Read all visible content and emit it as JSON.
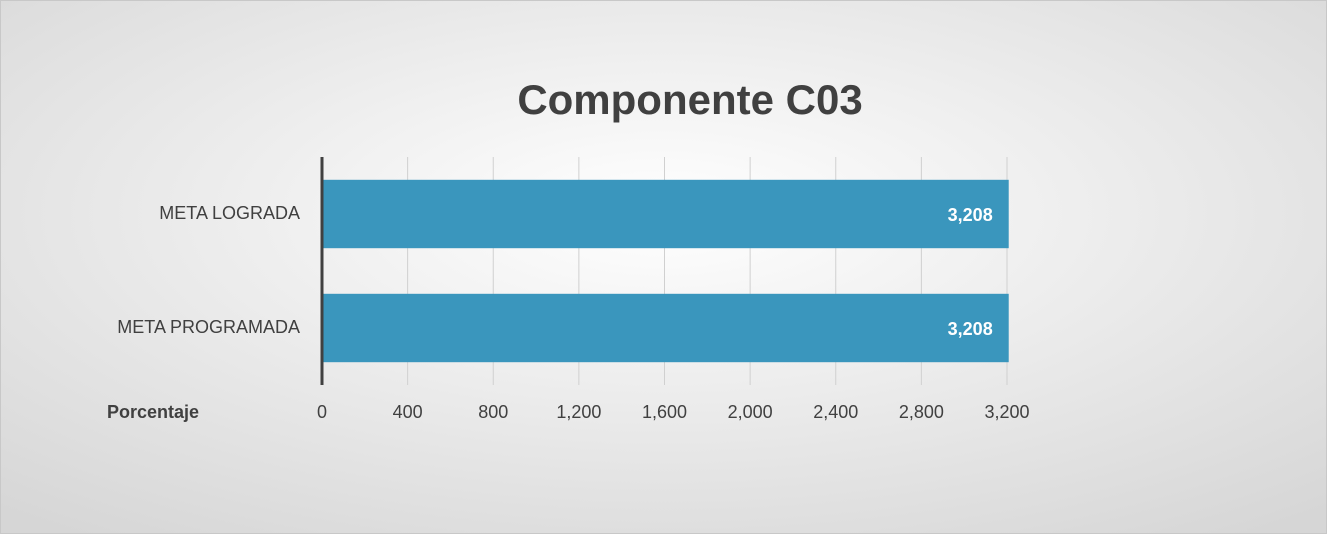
{
  "chart_data": {
    "type": "hbar",
    "title": "Componente C03",
    "xlabel": "Porcentaje",
    "categories": [
      "META LOGRADA",
      "META PROGRAMADA"
    ],
    "values": [
      3208,
      3208
    ],
    "value_labels": [
      "3,208",
      "3,208"
    ],
    "color": "#3a96bd",
    "xlim": [
      0,
      3200
    ],
    "xticks": [
      0,
      400,
      800,
      {
        "value": 1200,
        "label": "1,200"
      },
      {
        "value": 1600,
        "label": "1,600"
      },
      {
        "value": 2000,
        "label": "2,000"
      },
      {
        "value": 2400,
        "label": "2,400"
      },
      {
        "value": 2800,
        "label": "2,800"
      },
      {
        "value": 3200,
        "label": "3,200"
      }
    ],
    "grid": true
  }
}
